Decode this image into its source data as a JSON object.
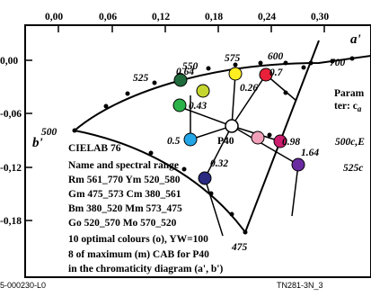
{
  "x_ticks": [
    "0,00",
    "0,06",
    "0,12",
    "0,18",
    "0,24",
    "0,30"
  ],
  "y_ticks": [
    "0,00",
    "-0,06",
    "-0,12",
    "-0,18"
  ],
  "axis": {
    "x_label": "a'",
    "y_label": "b'"
  },
  "locus_labels": [
    "500",
    "525",
    "550",
    "575",
    "600",
    "700",
    "475"
  ],
  "point_values": [
    "0.64",
    "0.43",
    "0.26",
    "0.7",
    "0.5",
    "0.98",
    "1.64",
    "0.32"
  ],
  "marker_label": "P40",
  "right_labels": {
    "param_1": "Param",
    "param_2": "ter: c",
    "param_2_sub": "a",
    "r1": "500c,E",
    "r2": "525c"
  },
  "info_lines": {
    "l1": "CIELAB 76",
    "l2": "Name and spectral range",
    "l3": "Rm 561_770  Ym 520_580",
    "l4": "Gm 475_573  Cm 380_561",
    "l5": "Bm 380_520  Mm 573_475",
    "l6": "Go 520_570  Mo 570_520",
    "l7": "10 optimal colours (o), YW=100",
    "l8": "8 of maximum (m) CAB for P40",
    "l9": "in the chromaticity diagram (a', b')"
  },
  "footer": {
    "left": "5-000230-L0",
    "right": "TN281-3N_3"
  },
  "colors": {
    "dark_green": "#1f6b3c",
    "green": "#2bb34a",
    "yellow_green": "#c6d630",
    "yellow": "#ffee22",
    "red": "#e8203a",
    "blue": "#22a6e8",
    "pink": "#f0a0b8",
    "magenta": "#cc1e6e",
    "purple": "#6a2aa0",
    "navy": "#2a2a80",
    "white": "#ffffff"
  }
}
